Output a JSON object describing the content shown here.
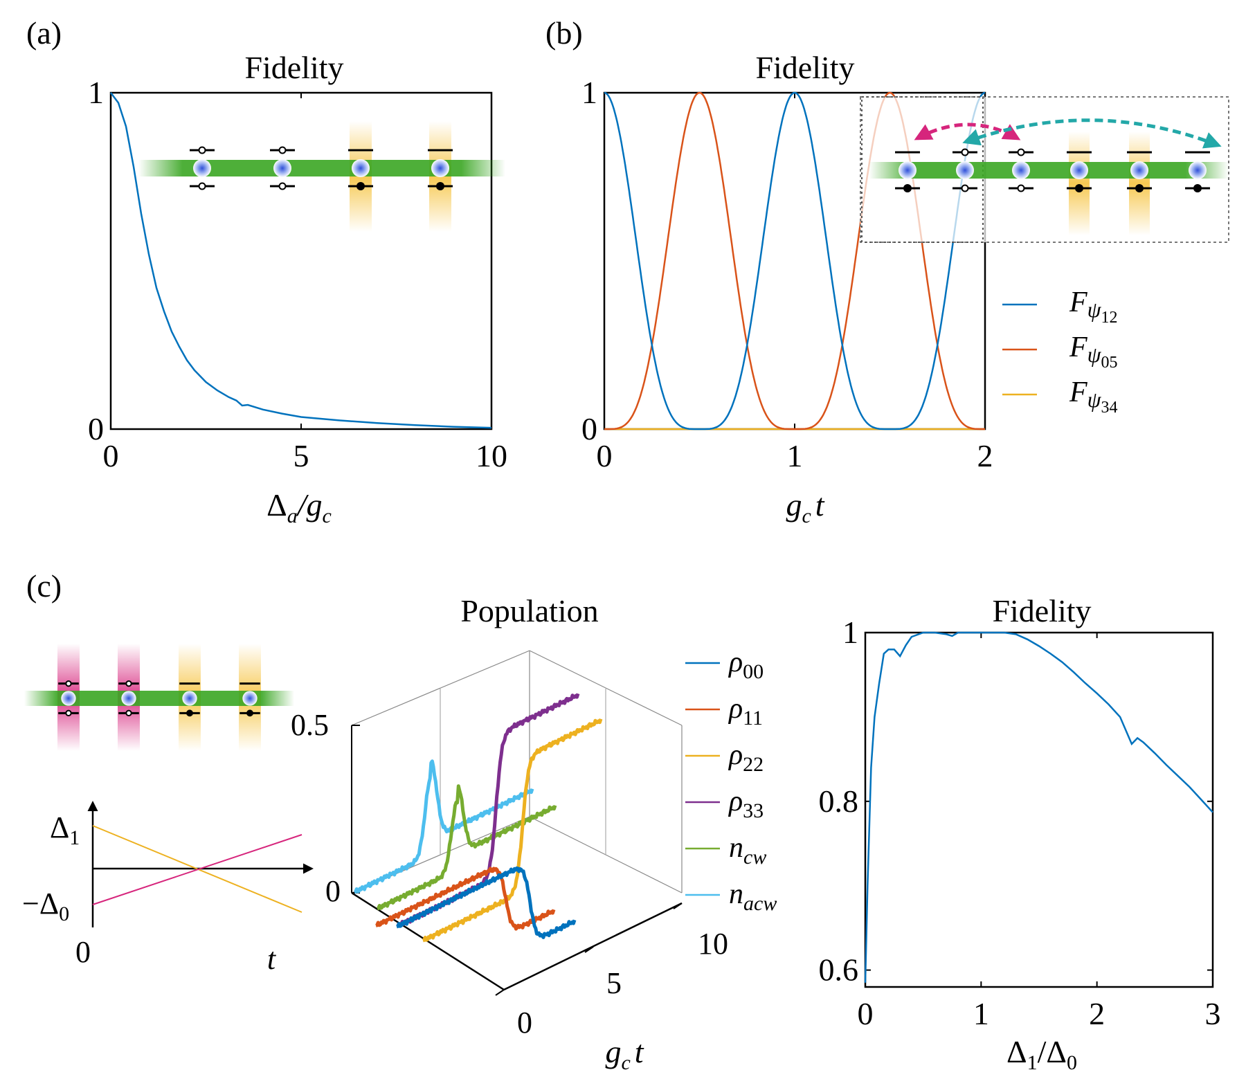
{
  "panel_labels": {
    "a": "(a)",
    "b": "(b)",
    "c": "(c)"
  },
  "colors": {
    "blue": "#0072BD",
    "orange": "#D95319",
    "yellow": "#EDB120",
    "purple": "#7E2F8E",
    "green": "#77AC30",
    "cyan": "#4DBEEE",
    "magenta": "#D6257C",
    "teal": "#23A8A8",
    "waveguide": "#3aa623",
    "laser_yellow": "#f6c64a"
  },
  "chart_data": [
    {
      "id": "a",
      "type": "line",
      "title": "Fidelity",
      "xlabel_parts": {
        "main": "Δ",
        "sub": "a",
        "mid": "/g",
        "sub2": "c"
      },
      "xlim": [
        0,
        10
      ],
      "ylim": [
        0,
        1
      ],
      "xticks": [
        "0",
        "5",
        "10"
      ],
      "yticks": [
        "0",
        "1"
      ],
      "series": [
        {
          "color": "blue",
          "x": [
            0,
            0.2,
            0.4,
            0.6,
            0.8,
            1.0,
            1.2,
            1.4,
            1.6,
            1.8,
            2.0,
            2.2,
            2.5,
            2.8,
            3.1,
            3.3,
            3.45,
            3.6,
            4.0,
            4.5,
            5.0,
            6.0,
            7.0,
            8.0,
            9.0,
            10.0
          ],
          "y": [
            1.0,
            0.97,
            0.9,
            0.78,
            0.64,
            0.52,
            0.42,
            0.35,
            0.29,
            0.245,
            0.205,
            0.175,
            0.14,
            0.115,
            0.095,
            0.085,
            0.07,
            0.072,
            0.058,
            0.046,
            0.036,
            0.026,
            0.018,
            0.012,
            0.007,
            0.004
          ]
        }
      ]
    },
    {
      "id": "b",
      "type": "line",
      "title": "Fidelity",
      "xlabel_parts": {
        "main": "g",
        "sub": "c",
        "tail": "t"
      },
      "xlim": [
        0,
        2
      ],
      "ylim": [
        0,
        1
      ],
      "xticks": [
        "0",
        "1",
        "2"
      ],
      "yticks": [
        "0",
        "1"
      ],
      "series": [
        {
          "name_sym": "F",
          "name_sub": "ψ",
          "name_sub2": "12",
          "color": "blue",
          "formula": "cos4"
        },
        {
          "name_sym": "F",
          "name_sub": "ψ",
          "name_sub2": "05",
          "color": "orange",
          "formula": "sin4"
        },
        {
          "name_sym": "F",
          "name_sub": "ψ",
          "name_sub2": "34",
          "color": "yellow",
          "formula": "zero"
        }
      ]
    },
    {
      "id": "c-schematic",
      "type": "line",
      "ylabel_top": "Δ",
      "ylabel_top_sub": "1",
      "ylabel_bottom": "−Δ",
      "ylabel_bottom_sub": "0",
      "x_origin": "0",
      "xlabel": "t"
    },
    {
      "id": "c-population",
      "type": "line",
      "title": "Population",
      "xlabel_parts": {
        "main": "g",
        "sub": "c",
        "tail": "t"
      },
      "zlim": [
        0,
        0.5
      ],
      "zticks": [
        "0",
        "0.5"
      ],
      "xlim": [
        0,
        10
      ],
      "xticks": [
        "0",
        "5",
        "10"
      ],
      "series": [
        {
          "name_sym": "ρ",
          "name_sub": "00",
          "color": "blue",
          "step_at": 7.5,
          "low": 0.02,
          "high": 0.28
        },
        {
          "name_sym": "ρ",
          "name_sub": "11",
          "color": "orange",
          "step_at": 7.3,
          "low": 0.02,
          "high": 0.25
        },
        {
          "name_sym": "ρ",
          "name_sub": "22",
          "color": "yellow",
          "step_at": 5.6,
          "low": 0.02,
          "high": 0.45
        },
        {
          "name_sym": "ρ",
          "name_sub": "33",
          "color": "purple",
          "step_at": 5.4,
          "low": 0.02,
          "high": 0.48
        },
        {
          "name_sym": "n",
          "name_sub": "cw",
          "color": "green",
          "peak_at": 4.5,
          "base": 0.02,
          "peak": 0.22
        },
        {
          "name_sym": "n",
          "name_sub": "acw",
          "color": "cyan",
          "peak_at": 4.3,
          "base": 0.02,
          "peak": 0.25
        }
      ]
    },
    {
      "id": "c-fidelity",
      "type": "line",
      "title": "Fidelity",
      "xlabel_parts": {
        "main": "Δ",
        "sub1": "1",
        "mid": "/Δ",
        "sub": "0"
      },
      "xlim": [
        0,
        3
      ],
      "ylim": [
        0.58,
        1
      ],
      "xticks": [
        "0",
        "1",
        "2",
        "3"
      ],
      "yticks": [
        "0.6",
        "0.8",
        "1"
      ],
      "series": [
        {
          "color": "blue",
          "x": [
            0,
            0.02,
            0.05,
            0.08,
            0.12,
            0.16,
            0.2,
            0.25,
            0.3,
            0.35,
            0.4,
            0.5,
            0.6,
            0.7,
            0.75,
            0.8,
            0.9,
            1.0,
            1.1,
            1.2,
            1.3,
            1.4,
            1.5,
            1.6,
            1.7,
            1.8,
            1.9,
            2.0,
            2.1,
            2.2,
            2.3,
            2.35,
            2.4,
            2.5,
            2.6,
            2.7,
            2.8,
            2.9,
            3.0
          ],
          "y": [
            0.585,
            0.7,
            0.84,
            0.9,
            0.94,
            0.975,
            0.98,
            0.98,
            0.972,
            0.985,
            0.995,
            1.0,
            1.0,
            0.998,
            0.996,
            1.0,
            1.0,
            1.0,
            1.0,
            1.0,
            0.998,
            0.992,
            0.984,
            0.975,
            0.965,
            0.953,
            0.94,
            0.928,
            0.915,
            0.9,
            0.868,
            0.875,
            0.87,
            0.857,
            0.843,
            0.83,
            0.817,
            0.802,
            0.787
          ]
        }
      ]
    }
  ]
}
